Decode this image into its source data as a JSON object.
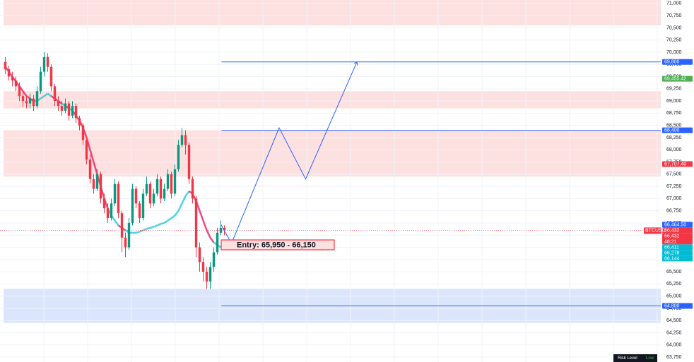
{
  "chart_data": {
    "type": "candlestick",
    "symbol": "BTCUSD",
    "ylim": [
      63650,
      71070
    ],
    "yticks": [
      {
        "value": 63750,
        "label": "63,750"
      },
      {
        "value": 64000,
        "label": "64,000"
      },
      {
        "value": 64250,
        "label": "64,250"
      },
      {
        "value": 64500,
        "label": "64,500"
      },
      {
        "value": 64750,
        "label": "64,750"
      },
      {
        "value": 65000,
        "label": "65,000"
      },
      {
        "value": 65250,
        "label": "65,250"
      },
      {
        "value": 65500,
        "label": "65,500"
      },
      {
        "value": 65750,
        "label": "65,750"
      },
      {
        "value": 66000,
        "label": "66,000"
      },
      {
        "value": 66250,
        "label": "66,250"
      },
      {
        "value": 66500,
        "label": "66,500"
      },
      {
        "value": 66750,
        "label": "66,750"
      },
      {
        "value": 67000,
        "label": "67,000"
      },
      {
        "value": 67250,
        "label": "67,250"
      },
      {
        "value": 67500,
        "label": "67,500"
      },
      {
        "value": 67750,
        "label": "67,750"
      },
      {
        "value": 68000,
        "label": "68,000"
      },
      {
        "value": 68250,
        "label": "68,250"
      },
      {
        "value": 68500,
        "label": "68,500"
      },
      {
        "value": 68750,
        "label": "68,750"
      },
      {
        "value": 69000,
        "label": "69,000"
      },
      {
        "value": 69250,
        "label": "69,250"
      },
      {
        "value": 69500,
        "label": "69,500"
      },
      {
        "value": 69750,
        "label": "69,750"
      },
      {
        "value": 70000,
        "label": "70,000"
      },
      {
        "value": 70250,
        "label": "70,250"
      },
      {
        "value": 70500,
        "label": "70,500"
      },
      {
        "value": 70750,
        "label": "70,750"
      },
      {
        "value": 71000,
        "label": "71,000"
      }
    ],
    "grid": true,
    "colors": {
      "up": "#089981",
      "down": "#f23645"
    },
    "open": [
      69800,
      69650,
      69500,
      69420,
      69300,
      69100,
      69000,
      68950,
      69050,
      68900,
      69200,
      69600,
      69900,
      69700,
      69300,
      69000,
      68900,
      68800,
      68950,
      68700,
      68900,
      68650,
      68500,
      68200,
      67800,
      67400,
      67200,
      67500,
      67000,
      66800,
      66600,
      66900,
      67300,
      66700,
      66200,
      66000,
      66500,
      67200,
      66900,
      66600,
      67100,
      67300,
      66900,
      67100,
      67400,
      67000,
      67200,
      67500,
      67100,
      67600,
      68100,
      68300,
      68100,
      67400,
      67000,
      66000,
      65700,
      65500,
      65300,
      65600,
      65900,
      66300,
      66400
    ],
    "high": [
      69900,
      69720,
      69600,
      69500,
      69380,
      69200,
      69100,
      69150,
      69120,
      69300,
      69700,
      70000,
      69980,
      69750,
      69350,
      69100,
      69000,
      69050,
      69000,
      69000,
      68950,
      68700,
      68550,
      68250,
      67900,
      67500,
      67600,
      67550,
      67100,
      66900,
      67000,
      67400,
      67350,
      66750,
      66300,
      66600,
      67300,
      67250,
      66950,
      67200,
      67450,
      67350,
      67200,
      67500,
      67450,
      67300,
      67600,
      67550,
      67700,
      68200,
      68450,
      68400,
      68150,
      67450,
      67050,
      66100,
      65800,
      65600,
      65700,
      66000,
      66400,
      66550,
      66450
    ],
    "low": [
      69550,
      69420,
      69300,
      69200,
      69000,
      68880,
      68850,
      68850,
      68800,
      68850,
      69150,
      69500,
      69600,
      69200,
      68900,
      68800,
      68700,
      68750,
      68600,
      68650,
      68550,
      68400,
      68100,
      67700,
      67300,
      67100,
      67150,
      66900,
      66700,
      66500,
      66550,
      66850,
      66600,
      65900,
      65800,
      65950,
      66450,
      66800,
      66500,
      66550,
      67050,
      66800,
      66850,
      67050,
      66900,
      66950,
      67150,
      67000,
      67050,
      67550,
      68050,
      67900,
      67300,
      66900,
      65800,
      65500,
      65300,
      65150,
      65150,
      65500,
      65850,
      66250,
      66250
    ],
    "close": [
      69650,
      69500,
      69420,
      69300,
      69100,
      69000,
      68950,
      69050,
      68900,
      69200,
      69600,
      69900,
      69700,
      69300,
      69000,
      68900,
      68800,
      68950,
      68700,
      68900,
      68650,
      68500,
      68200,
      67800,
      67400,
      67200,
      67500,
      67000,
      66800,
      66600,
      66900,
      67300,
      66700,
      66200,
      66000,
      66500,
      67200,
      66900,
      66600,
      67100,
      67300,
      66900,
      67100,
      67400,
      67000,
      67200,
      67500,
      67100,
      67600,
      68100,
      68300,
      68100,
      67400,
      67000,
      66000,
      65700,
      65500,
      65300,
      65600,
      65900,
      66300,
      66400,
      66350
    ],
    "ma": {
      "values": [
        69700,
        69600,
        69500,
        69400,
        69300,
        69200,
        69100,
        69050,
        69000,
        69000,
        69050,
        69100,
        69150,
        69100,
        69050,
        69000,
        68950,
        68900,
        68850,
        68800,
        68700,
        68600,
        68450,
        68250,
        68000,
        67750,
        67500,
        67250,
        67000,
        66800,
        66650,
        66550,
        66450,
        66400,
        66350,
        66300,
        66300,
        66300,
        66320,
        66350,
        66380,
        66400,
        66420,
        66450,
        66480,
        66500,
        66550,
        66600,
        66650,
        66750,
        66900,
        67050,
        67150,
        67100,
        66950,
        66750,
        66550,
        66350,
        66200,
        66100,
        66050,
        66000,
        65980
      ],
      "color_above": "#e91e63",
      "color_below": "#26c6da"
    },
    "zones": [
      {
        "low": 70550,
        "high": 71070,
        "color": "#fde0e0"
      },
      {
        "low": 68850,
        "high": 69200,
        "color": "#fde0e0"
      },
      {
        "low": 67450,
        "high": 68400,
        "color": "#fde0e0"
      },
      {
        "low": 64450,
        "high": 65150,
        "color": "#dbe6fd"
      }
    ],
    "levels": [
      {
        "value": 69800,
        "color": "#2962ff"
      },
      {
        "value": 68400,
        "color": "#2962ff"
      },
      {
        "value": 64800,
        "color": "#2962ff"
      }
    ],
    "projection": {
      "x": [
        61,
        64,
        77.5,
        85,
        99.5
      ],
      "values": [
        66470,
        66080,
        68450,
        67400,
        69800
      ],
      "color": "#2962ff"
    },
    "price_tags": [
      {
        "value": 69800,
        "label": "69,800",
        "color": "#2962ff"
      },
      {
        "value": 69455.42,
        "label": "69,455.42",
        "color": "#4caf50"
      },
      {
        "value": 68400,
        "label": "68,400",
        "color": "#2962ff"
      },
      {
        "value": 67707.4,
        "label": "67,707.40",
        "color": "#f23645"
      },
      {
        "value": 66464.5,
        "label": "66,464.50",
        "color": "#2962ff"
      },
      {
        "value": 66432,
        "label": "66,432",
        "color": "#f23645"
      },
      {
        "value": 66432,
        "label": "66,432",
        "sub": "48:21",
        "color": "#f23645"
      },
      {
        "value": 66411,
        "label": "66,411",
        "color": "#00bcd4"
      },
      {
        "value": 66278,
        "label": "66,278",
        "color": "#00bcd4"
      },
      {
        "value": 66144,
        "label": "66,144",
        "color": "#00bcd4"
      },
      {
        "value": 64800,
        "label": "64,800",
        "color": "#2962ff"
      }
    ],
    "entry_label": "Entry: 65,950 - 66,150",
    "risk": {
      "label": "Risk Level",
      "value": "Low"
    }
  }
}
